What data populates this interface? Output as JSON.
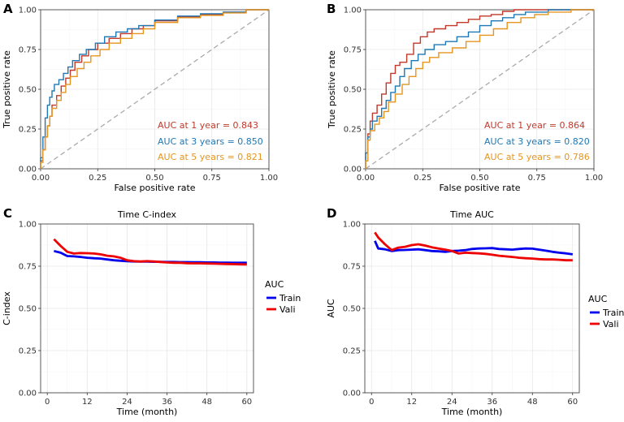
{
  "chart_data": [
    {
      "panel": "A",
      "type": "line",
      "title": "",
      "xlabel": "False positive rate",
      "ylabel": "True positive rate",
      "xlim": [
        0,
        1
      ],
      "ylim": [
        0,
        1
      ],
      "xticks": [
        "0.00",
        "0.25",
        "0.50",
        "0.75",
        "1.00"
      ],
      "yticks": [
        "0.00",
        "0.25",
        "0.50",
        "0.75",
        "1.00"
      ],
      "reference_line": true,
      "series": [
        {
          "name": "1 year",
          "color": "#c0392b",
          "label": "AUC at 1 year = 0.843",
          "points": [
            [
              0,
              0
            ],
            [
              0.01,
              0.05
            ],
            [
              0.02,
              0.12
            ],
            [
              0.03,
              0.2
            ],
            [
              0.04,
              0.27
            ],
            [
              0.05,
              0.33
            ],
            [
              0.07,
              0.4
            ],
            [
              0.09,
              0.46
            ],
            [
              0.11,
              0.52
            ],
            [
              0.13,
              0.57
            ],
            [
              0.15,
              0.62
            ],
            [
              0.18,
              0.67
            ],
            [
              0.21,
              0.71
            ],
            [
              0.25,
              0.75
            ],
            [
              0.3,
              0.79
            ],
            [
              0.35,
              0.82
            ],
            [
              0.4,
              0.85
            ],
            [
              0.45,
              0.88
            ],
            [
              0.5,
              0.9
            ],
            [
              0.6,
              0.93
            ],
            [
              0.7,
              0.955
            ],
            [
              0.8,
              0.97
            ],
            [
              0.9,
              0.985
            ],
            [
              1,
              1
            ]
          ]
        },
        {
          "name": "3 years",
          "color": "#1f78b4",
          "label": "AUC at 3 years = 0.850",
          "points": [
            [
              0,
              0
            ],
            [
              0.01,
              0.07
            ],
            [
              0.02,
              0.2
            ],
            [
              0.03,
              0.32
            ],
            [
              0.04,
              0.4
            ],
            [
              0.05,
              0.45
            ],
            [
              0.06,
              0.49
            ],
            [
              0.08,
              0.53
            ],
            [
              0.1,
              0.56
            ],
            [
              0.12,
              0.6
            ],
            [
              0.14,
              0.64
            ],
            [
              0.17,
              0.68
            ],
            [
              0.2,
              0.72
            ],
            [
              0.24,
              0.75
            ],
            [
              0.28,
              0.79
            ],
            [
              0.33,
              0.83
            ],
            [
              0.38,
              0.86
            ],
            [
              0.43,
              0.88
            ],
            [
              0.5,
              0.9
            ],
            [
              0.6,
              0.935
            ],
            [
              0.7,
              0.96
            ],
            [
              0.8,
              0.975
            ],
            [
              0.9,
              0.985
            ],
            [
              1,
              1
            ]
          ]
        },
        {
          "name": "5 years",
          "color": "#e69520",
          "label": "AUC at 5 years = 0.821",
          "points": [
            [
              0,
              0
            ],
            [
              0.01,
              0.04
            ],
            [
              0.02,
              0.12
            ],
            [
              0.03,
              0.2
            ],
            [
              0.04,
              0.27
            ],
            [
              0.05,
              0.33
            ],
            [
              0.07,
              0.38
            ],
            [
              0.09,
              0.43
            ],
            [
              0.11,
              0.48
            ],
            [
              0.13,
              0.53
            ],
            [
              0.16,
              0.58
            ],
            [
              0.19,
              0.63
            ],
            [
              0.22,
              0.67
            ],
            [
              0.26,
              0.71
            ],
            [
              0.3,
              0.75
            ],
            [
              0.35,
              0.79
            ],
            [
              0.4,
              0.82
            ],
            [
              0.45,
              0.85
            ],
            [
              0.5,
              0.88
            ],
            [
              0.6,
              0.92
            ],
            [
              0.7,
              0.95
            ],
            [
              0.8,
              0.965
            ],
            [
              0.9,
              0.98
            ],
            [
              1,
              1
            ]
          ]
        }
      ]
    },
    {
      "panel": "B",
      "type": "line",
      "title": "",
      "xlabel": "False positive rate",
      "ylabel": "True positive rate",
      "xlim": [
        0,
        1
      ],
      "ylim": [
        0,
        1
      ],
      "xticks": [
        "0.00",
        "0.25",
        "0.50",
        "0.75",
        "1.00"
      ],
      "yticks": [
        "0.00",
        "0.25",
        "0.50",
        "0.75",
        "1.00"
      ],
      "reference_line": true,
      "series": [
        {
          "name": "1 year",
          "color": "#c0392b",
          "label": "AUC at 1 year = 0.864",
          "points": [
            [
              0,
              0
            ],
            [
              0.01,
              0.1
            ],
            [
              0.02,
              0.22
            ],
            [
              0.03,
              0.3
            ],
            [
              0.05,
              0.35
            ],
            [
              0.07,
              0.4
            ],
            [
              0.09,
              0.47
            ],
            [
              0.11,
              0.54
            ],
            [
              0.13,
              0.6
            ],
            [
              0.15,
              0.65
            ],
            [
              0.18,
              0.67
            ],
            [
              0.21,
              0.72
            ],
            [
              0.24,
              0.79
            ],
            [
              0.27,
              0.83
            ],
            [
              0.3,
              0.86
            ],
            [
              0.35,
              0.88
            ],
            [
              0.4,
              0.9
            ],
            [
              0.45,
              0.92
            ],
            [
              0.5,
              0.94
            ],
            [
              0.55,
              0.96
            ],
            [
              0.6,
              0.97
            ],
            [
              0.65,
              0.99
            ],
            [
              0.75,
              1
            ],
            [
              1,
              1
            ]
          ]
        },
        {
          "name": "3 years",
          "color": "#1f78b4",
          "label": "AUC at 3 years = 0.820",
          "points": [
            [
              0,
              0
            ],
            [
              0.01,
              0.1
            ],
            [
              0.02,
              0.2
            ],
            [
              0.03,
              0.25
            ],
            [
              0.05,
              0.3
            ],
            [
              0.07,
              0.33
            ],
            [
              0.09,
              0.38
            ],
            [
              0.11,
              0.43
            ],
            [
              0.13,
              0.48
            ],
            [
              0.15,
              0.52
            ],
            [
              0.17,
              0.58
            ],
            [
              0.2,
              0.63
            ],
            [
              0.23,
              0.68
            ],
            [
              0.26,
              0.72
            ],
            [
              0.3,
              0.75
            ],
            [
              0.35,
              0.78
            ],
            [
              0.4,
              0.8
            ],
            [
              0.45,
              0.83
            ],
            [
              0.5,
              0.86
            ],
            [
              0.55,
              0.9
            ],
            [
              0.6,
              0.93
            ],
            [
              0.65,
              0.95
            ],
            [
              0.7,
              0.97
            ],
            [
              0.8,
              0.985
            ],
            [
              1,
              1
            ]
          ]
        },
        {
          "name": "5 years",
          "color": "#e69520",
          "label": "AUC at 5 years = 0.786",
          "points": [
            [
              0,
              0
            ],
            [
              0.01,
              0.05
            ],
            [
              0.02,
              0.18
            ],
            [
              0.04,
              0.24
            ],
            [
              0.06,
              0.28
            ],
            [
              0.08,
              0.32
            ],
            [
              0.1,
              0.36
            ],
            [
              0.13,
              0.42
            ],
            [
              0.16,
              0.47
            ],
            [
              0.19,
              0.53
            ],
            [
              0.22,
              0.58
            ],
            [
              0.25,
              0.63
            ],
            [
              0.28,
              0.67
            ],
            [
              0.32,
              0.7
            ],
            [
              0.38,
              0.73
            ],
            [
              0.44,
              0.76
            ],
            [
              0.5,
              0.8
            ],
            [
              0.56,
              0.84
            ],
            [
              0.62,
              0.88
            ],
            [
              0.68,
              0.92
            ],
            [
              0.74,
              0.95
            ],
            [
              0.8,
              0.97
            ],
            [
              0.9,
              0.985
            ],
            [
              1,
              1
            ]
          ]
        }
      ]
    },
    {
      "panel": "C",
      "type": "line",
      "title": "Time C-index",
      "xlabel": "Time (month)",
      "ylabel": "C-index",
      "xlim": [
        -2,
        62
      ],
      "ylim": [
        0,
        1
      ],
      "xtick_values": [
        0,
        12,
        24,
        36,
        48,
        60
      ],
      "xticks": [
        "0",
        "12",
        "24",
        "36",
        "48",
        "60"
      ],
      "yticks": [
        "0.00",
        "0.25",
        "0.50",
        "0.75",
        "1.00"
      ],
      "legend": {
        "title": "AUC",
        "position": "right"
      },
      "series": [
        {
          "name": "Train",
          "color": "#0000ee",
          "x": [
            2,
            4,
            6,
            8,
            10,
            12,
            14,
            16,
            18,
            20,
            22,
            24,
            26,
            28,
            30,
            32,
            34,
            36,
            38,
            40,
            42,
            44,
            46,
            48,
            50,
            52,
            54,
            56,
            58,
            60
          ],
          "values": [
            0.84,
            0.83,
            0.81,
            0.808,
            0.805,
            0.8,
            0.797,
            0.795,
            0.79,
            0.785,
            0.782,
            0.78,
            0.778,
            0.777,
            0.777,
            0.776,
            0.776,
            0.775,
            0.775,
            0.774,
            0.774,
            0.773,
            0.773,
            0.772,
            0.772,
            0.771,
            0.771,
            0.77,
            0.77,
            0.77
          ]
        },
        {
          "name": "Vali",
          "color": "#ee0000",
          "x": [
            2,
            4,
            6,
            8,
            10,
            12,
            14,
            16,
            18,
            20,
            22,
            24,
            26,
            28,
            30,
            32,
            34,
            36,
            38,
            40,
            42,
            44,
            46,
            48,
            50,
            52,
            54,
            56,
            58,
            60
          ],
          "values": [
            0.91,
            0.87,
            0.835,
            0.825,
            0.828,
            0.827,
            0.825,
            0.82,
            0.812,
            0.808,
            0.8,
            0.785,
            0.78,
            0.778,
            0.78,
            0.778,
            0.775,
            0.772,
            0.77,
            0.77,
            0.768,
            0.767,
            0.767,
            0.766,
            0.765,
            0.764,
            0.763,
            0.762,
            0.761,
            0.76
          ]
        }
      ]
    },
    {
      "panel": "D",
      "type": "line",
      "title": "Time AUC",
      "xlabel": "Time (month)",
      "ylabel": "AUC",
      "xlim": [
        -2,
        62
      ],
      "ylim": [
        0,
        1
      ],
      "xtick_values": [
        0,
        12,
        24,
        36,
        48,
        60
      ],
      "xticks": [
        "0",
        "12",
        "24",
        "36",
        "48",
        "60"
      ],
      "yticks": [
        "0.00",
        "0.25",
        "0.50",
        "0.75",
        "1.00"
      ],
      "legend": {
        "title": "AUC",
        "position": "right"
      },
      "series": [
        {
          "name": "Train",
          "color": "#0000ee",
          "x": [
            1,
            2,
            4,
            6,
            8,
            10,
            12,
            14,
            16,
            18,
            20,
            22,
            24,
            26,
            28,
            30,
            32,
            34,
            36,
            38,
            40,
            42,
            44,
            46,
            48,
            50,
            52,
            54,
            56,
            58,
            60
          ],
          "values": [
            0.9,
            0.855,
            0.85,
            0.84,
            0.845,
            0.846,
            0.848,
            0.85,
            0.845,
            0.84,
            0.838,
            0.835,
            0.84,
            0.842,
            0.845,
            0.852,
            0.855,
            0.856,
            0.857,
            0.852,
            0.85,
            0.848,
            0.852,
            0.855,
            0.854,
            0.848,
            0.842,
            0.835,
            0.83,
            0.826,
            0.82
          ]
        },
        {
          "name": "Vali",
          "color": "#ee0000",
          "x": [
            1,
            2,
            4,
            6,
            8,
            10,
            12,
            14,
            16,
            18,
            20,
            22,
            24,
            26,
            28,
            30,
            32,
            34,
            36,
            38,
            40,
            42,
            44,
            46,
            48,
            50,
            52,
            54,
            56,
            58,
            60
          ],
          "values": [
            0.95,
            0.92,
            0.88,
            0.845,
            0.86,
            0.865,
            0.875,
            0.88,
            0.872,
            0.862,
            0.855,
            0.848,
            0.84,
            0.825,
            0.83,
            0.828,
            0.826,
            0.823,
            0.818,
            0.812,
            0.808,
            0.805,
            0.8,
            0.797,
            0.795,
            0.792,
            0.79,
            0.79,
            0.788,
            0.785,
            0.785
          ]
        }
      ]
    }
  ]
}
